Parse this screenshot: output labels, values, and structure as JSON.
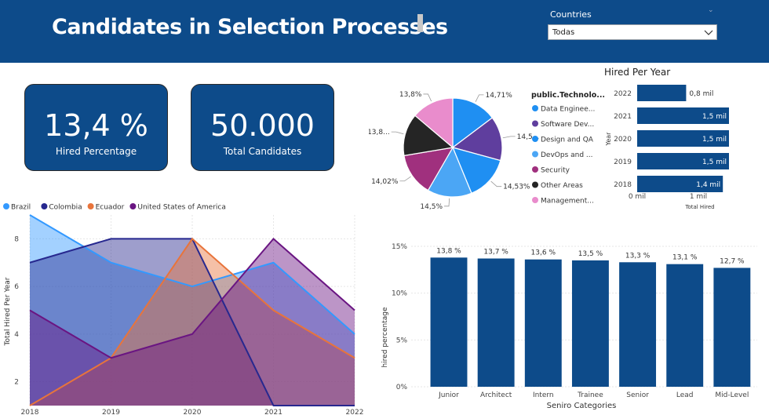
{
  "header": {
    "title": "Candidates in Selection Processes"
  },
  "filter": {
    "label": "Countries",
    "value": "Todas"
  },
  "cards": [
    {
      "value": "13,4 %",
      "label": "Hired Percentage"
    },
    {
      "value": "50.000",
      "label": "Total Candidates"
    }
  ],
  "pie": {
    "legend_title": "public.Technolo...",
    "slices": [
      {
        "name": "Data Enginee...",
        "label": "14,71%",
        "color": "#1f8ff2",
        "value": 14.71
      },
      {
        "name": "Software Dev...",
        "label": "14,5...",
        "color": "#5f3e9e",
        "value": 14.5
      },
      {
        "name": "Design and QA",
        "label": "14,53%",
        "color": "#1f8ff2",
        "value": 14.53
      },
      {
        "name": "DevOps and ...",
        "label": "14,5%",
        "color": "#4ba6f5",
        "value": 14.5
      },
      {
        "name": "Security",
        "label": "14,02%",
        "color": "#a0307e",
        "value": 14.02
      },
      {
        "name": "Other Areas",
        "label": "13,8...",
        "color": "#252525",
        "value": 13.8
      },
      {
        "name": "Management...",
        "label": "13,8%",
        "color": "#e98ccc",
        "value": 13.8
      }
    ]
  },
  "hired_per_year": {
    "title": "Hired Per Year",
    "y_axis": "Year",
    "x_axis": "Total Hired",
    "x_ticks": [
      "0 mil",
      "1 mil"
    ],
    "rows": [
      {
        "year": "2022",
        "value": 0.8,
        "label": "0,8 mil"
      },
      {
        "year": "2021",
        "value": 1.5,
        "label": "1,5 mil"
      },
      {
        "year": "2020",
        "value": 1.5,
        "label": "1,5 mil"
      },
      {
        "year": "2019",
        "value": 1.5,
        "label": "1,5 mil"
      },
      {
        "year": "2018",
        "value": 1.4,
        "label": "1,4 mil"
      }
    ]
  },
  "chart_data": [
    {
      "type": "area",
      "title": "",
      "xlabel": "",
      "ylabel": "Total Hired Per Year",
      "x": [
        "2018",
        "2019",
        "2020",
        "2021",
        "2022"
      ],
      "ylim": [
        1,
        9
      ],
      "y_ticks": [
        2,
        4,
        6,
        8
      ],
      "legend": "top-left",
      "series": [
        {
          "name": "Brazil",
          "color": "#3399ff",
          "values": [
            9,
            7,
            6,
            7,
            4
          ]
        },
        {
          "name": "Colombia",
          "color": "#27288f",
          "values": [
            7,
            8,
            8,
            1,
            1
          ]
        },
        {
          "name": "Ecuador",
          "color": "#e8743b",
          "values": [
            1,
            3,
            8,
            5,
            3
          ]
        },
        {
          "name": "United States of America",
          "color": "#6a1582",
          "values": [
            5,
            3,
            4,
            8,
            5
          ]
        }
      ]
    },
    {
      "type": "bar",
      "title": "",
      "xlabel": "Seniro Categories",
      "ylabel": "hired percentage",
      "categories": [
        "Junior",
        "Architect",
        "Intern",
        "Trainee",
        "Senior",
        "Lead",
        "Mid-Level"
      ],
      "values": [
        13.8,
        13.7,
        13.6,
        13.5,
        13.3,
        13.1,
        12.7
      ],
      "labels": [
        "13,8 %",
        "13,7 %",
        "13,6 %",
        "13,5 %",
        "13,3 %",
        "13,1 %",
        "12,7 %"
      ],
      "ylim": [
        0,
        15
      ],
      "y_ticks": [
        "0%",
        "5%",
        "10%",
        "15%"
      ],
      "color": "#0d4b8a"
    }
  ]
}
